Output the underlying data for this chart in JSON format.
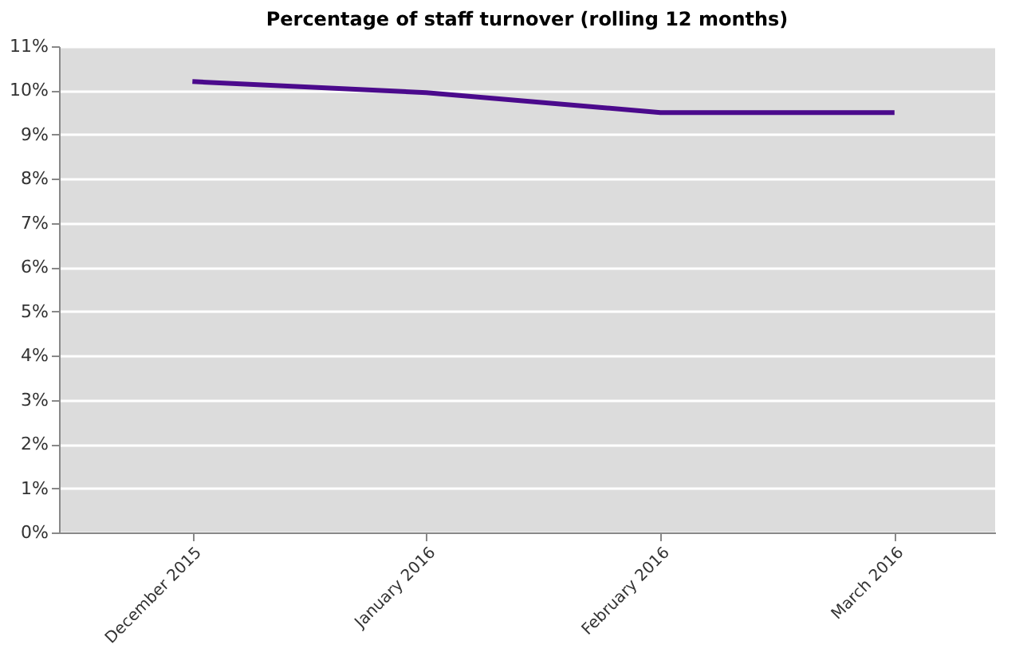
{
  "chart_data": {
    "type": "line",
    "title": "Percentage of staff turnover (rolling 12 months)",
    "categories": [
      "December 2015",
      "January 2016",
      "February 2016",
      "March 2016"
    ],
    "series": [
      {
        "color": "#4b0a8c",
        "values": [
          10.2,
          9.95,
          9.5,
          9.5
        ]
      }
    ],
    "ylim": [
      0,
      11
    ],
    "yticks": [
      {
        "value": 0,
        "label": "0%"
      },
      {
        "value": 1,
        "label": "1%"
      },
      {
        "value": 2,
        "label": "2%"
      },
      {
        "value": 3,
        "label": "3%"
      },
      {
        "value": 4,
        "label": "4%"
      },
      {
        "value": 5,
        "label": "5%"
      },
      {
        "value": 6,
        "label": "6%"
      },
      {
        "value": 7,
        "label": "7%"
      },
      {
        "value": 8,
        "label": "8%"
      },
      {
        "value": 9,
        "label": "9%"
      },
      {
        "value": 10,
        "label": "10%"
      },
      {
        "value": 11,
        "label": "11%"
      }
    ],
    "grid": "y",
    "marker": "none",
    "line_style": "solid"
  }
}
